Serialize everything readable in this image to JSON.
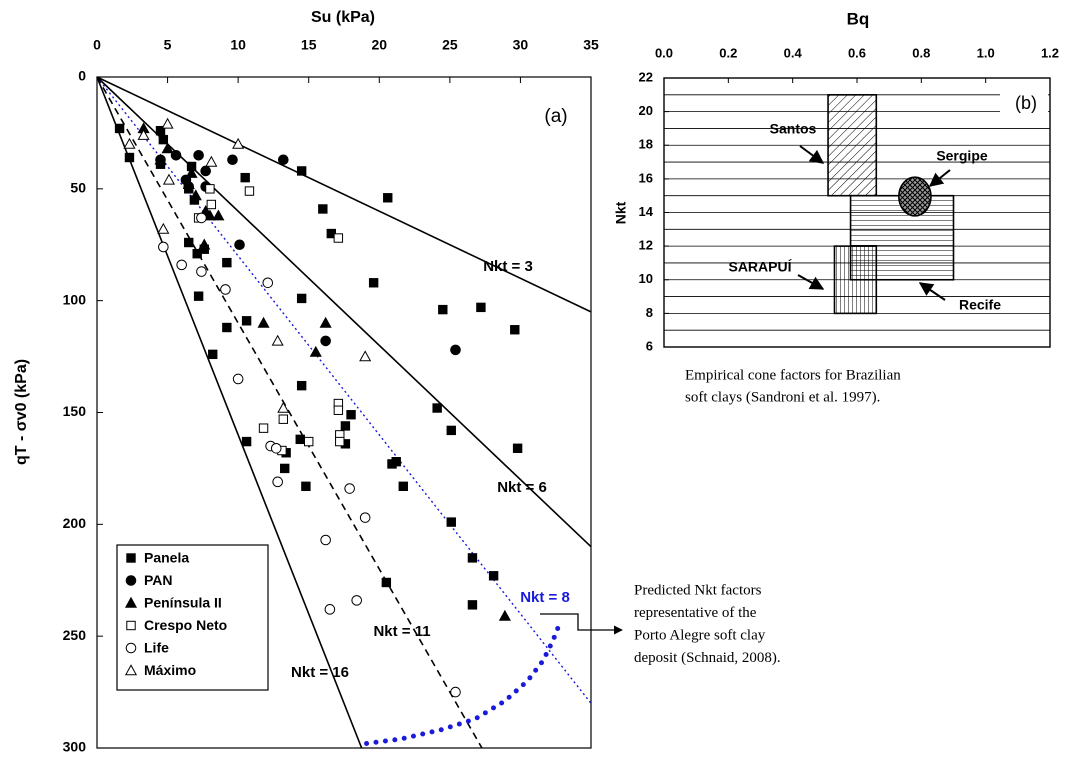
{
  "chart_data": [
    {
      "type": "scatter",
      "xlabel": "Su (kPa)",
      "ylabel": "qT - σv0 (kPa)",
      "panel_label": "(a)",
      "xlim": [
        0,
        35
      ],
      "ylim": [
        0,
        300
      ],
      "y_inverted": true,
      "x_axis_position": "top",
      "xticks": [
        0,
        5,
        10,
        15,
        20,
        25,
        30,
        35
      ],
      "yticks": [
        0,
        50,
        100,
        150,
        200,
        250,
        300
      ],
      "legend": "lower left",
      "series": [
        {
          "name": "Panela",
          "marker": "square",
          "filled": true,
          "x": [
            1.6,
            2.3,
            4.5,
            4.5,
            4.7,
            6.7,
            6.5,
            6.9,
            6.5,
            7.1,
            7.2,
            7.6,
            8.2,
            9.2,
            9.2,
            10.5,
            10.6,
            10.6,
            13.3,
            13.4,
            14.5,
            14.5,
            14.5,
            14.4,
            14.8,
            16,
            16.6,
            17.6,
            18,
            17.6,
            19.6,
            20.6,
            20.9,
            21.2,
            21.7,
            20.5,
            24.1,
            24.5,
            25.1,
            25.1,
            26.6,
            26.6,
            27.2,
            28.1,
            29.6,
            29.8
          ],
          "y": [
            23,
            36,
            24,
            39,
            28,
            40,
            50,
            55,
            74,
            79,
            98,
            77,
            124,
            83,
            112,
            45,
            163,
            109,
            175,
            168,
            42,
            99,
            138,
            162,
            183,
            59,
            70,
            164,
            151,
            156,
            92,
            54,
            173,
            172,
            183,
            226,
            148,
            104,
            158,
            199,
            215,
            236,
            103,
            223,
            113,
            166
          ]
        },
        {
          "name": "PAN",
          "marker": "circle",
          "filled": true,
          "x": [
            4.5,
            5.6,
            6.3,
            7.2,
            7.7,
            7.7,
            6.5,
            9.6,
            10.1,
            13.2,
            16.2,
            25.4
          ],
          "y": [
            37,
            35,
            46,
            35,
            42,
            49,
            49,
            37,
            75,
            37,
            118,
            122
          ]
        },
        {
          "name": "Península II",
          "marker": "triangle",
          "filled": true,
          "x": [
            3.3,
            4.5,
            5,
            6.5,
            6.7,
            7,
            7.7,
            8,
            8.6,
            7.6,
            11.8,
            16.2,
            15.5,
            28.9
          ],
          "y": [
            23,
            37,
            32,
            48,
            43,
            53,
            60,
            62,
            62,
            75,
            110,
            110,
            123,
            241
          ]
        },
        {
          "name": "Crespo Neto",
          "marker": "square",
          "filled": false,
          "x": [
            7.2,
            8.1,
            8,
            10.8,
            17.1,
            11.8,
            13.2,
            13.1,
            15,
            17.1,
            17.1,
            17.2,
            17.2
          ],
          "y": [
            63,
            57,
            50,
            51,
            72,
            157,
            153,
            167,
            163,
            146,
            149,
            160,
            163
          ]
        },
        {
          "name": "Life",
          "marker": "circle",
          "filled": false,
          "x": [
            4.7,
            6,
            7.4,
            7.4,
            9.1,
            12.1,
            10,
            12.3,
            12.8,
            12.7,
            17.9,
            19,
            16.2,
            18.4,
            16.5,
            25.4
          ],
          "y": [
            76,
            84,
            87,
            63,
            95,
            92,
            135,
            165,
            181,
            166,
            184,
            197,
            207,
            234,
            238,
            275
          ]
        },
        {
          "name": "Máximo",
          "marker": "triangle",
          "filled": false,
          "x": [
            2.3,
            3.3,
            5,
            5.1,
            8.1,
            4.7,
            10,
            12.8,
            13.2,
            19
          ],
          "y": [
            30,
            26,
            21,
            46,
            38,
            68,
            30,
            118,
            148,
            125
          ]
        }
      ],
      "lines": [
        {
          "label": "Nkt = 3",
          "slope": 3,
          "style": "solid",
          "color": "#000000"
        },
        {
          "label": "Nkt = 6",
          "slope": 6,
          "style": "solid",
          "color": "#000000"
        },
        {
          "label": "Nkt = 8",
          "slope": 8,
          "style": "dotted",
          "color": "#1a1adb"
        },
        {
          "label": "Nkt = 11",
          "slope": 11,
          "style": "dashed",
          "color": "#000000"
        },
        {
          "label": "Nkt = 16",
          "slope": 16,
          "style": "solid",
          "color": "#000000"
        }
      ],
      "curve": {
        "color": "#1a1adb",
        "x": [
          19.1,
          21.5,
          24.3,
          26.8,
          28.9,
          30.5,
          31.6,
          32.3,
          32.8
        ],
        "y": [
          298,
          296,
          292,
          287,
          279,
          270,
          261,
          252,
          244
        ]
      },
      "annotation": [
        "Predicted Nkt factors",
        "representative of the",
        "Porto Alegre soft clay",
        "deposit (Schnaid, 2008)."
      ]
    },
    {
      "type": "region",
      "xlabel": "Bq",
      "ylabel": "Nkt",
      "panel_label": "(b)",
      "xlim": [
        0,
        1.2
      ],
      "ylim": [
        6,
        22
      ],
      "x_axis_position": "top",
      "grid_step": 1,
      "xticks": [
        {
          "value": 0,
          "label": "0.0"
        },
        {
          "value": 0.2,
          "label": "0.2"
        },
        {
          "value": 0.4,
          "label": "0.4"
        },
        {
          "value": 0.6,
          "label": "0.6"
        },
        {
          "value": 0.8,
          "label": "0.8"
        },
        {
          "value": 1,
          "label": "1.0"
        },
        {
          "value": 1.2,
          "label": "1.2"
        }
      ],
      "yticks": [
        6,
        8,
        10,
        12,
        14,
        16,
        18,
        20,
        22
      ],
      "regions": [
        {
          "name": "Recife",
          "shape": "rect",
          "pattern": "horizontal",
          "x": [
            0.58,
            0.9
          ],
          "y": [
            10,
            15
          ]
        },
        {
          "name": "Santos",
          "shape": "rect",
          "pattern": "diagonal",
          "x": [
            0.51,
            0.66
          ],
          "y": [
            15,
            21
          ]
        },
        {
          "name": "SARAPUÍ",
          "shape": "rect",
          "pattern": "vertical",
          "x": [
            0.53,
            0.66
          ],
          "y": [
            8,
            12
          ]
        },
        {
          "name": "Sergipe",
          "shape": "ellipse",
          "pattern": "cross",
          "x": [
            0.73,
            0.83
          ],
          "y": [
            13.8,
            16.1
          ]
        }
      ],
      "caption": [
        "Empirical cone factors for Brazilian",
        "soft clays (Sandroni et al. 1997)."
      ]
    }
  ]
}
